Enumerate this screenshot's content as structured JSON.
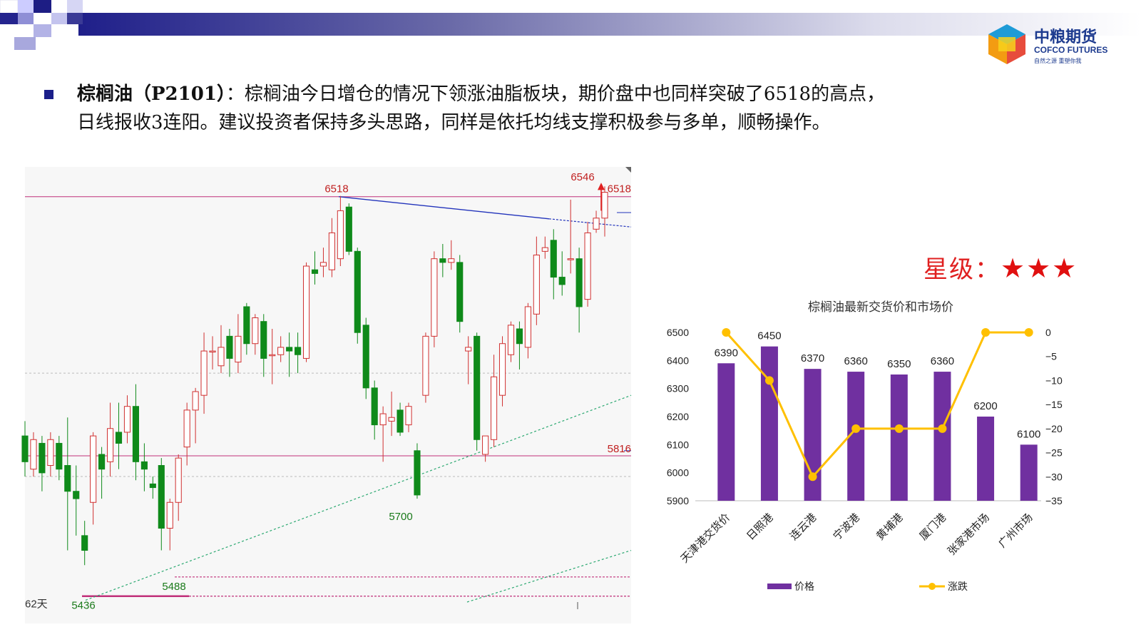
{
  "logo": {
    "name_cn": "中粮期货",
    "name_en": "COFCO FUTURES",
    "tagline": "自然之源 重塑你我"
  },
  "commentary": {
    "product_label": "棕榈油（P2101）",
    "body_line1": "：棕榈油今日增仓的情况下领涨油脂板块，期价盘中也同样突破了6518的高点，",
    "body_line2": "日线报收3连阳。建议投资者保持多头思路，同样是依托均线支撑积极参与多单，顺畅操作。"
  },
  "rating": {
    "label": "星级：",
    "stars": "★★★"
  },
  "chart_data": [
    {
      "type": "candlestick",
      "title": "",
      "price_range": [
        5420,
        6560
      ],
      "annotations": [
        {
          "text": "6518",
          "value": 6518
        },
        {
          "text": "6546",
          "value": 6546
        },
        {
          "text": "6518",
          "value": 6518
        },
        {
          "text": "5816",
          "value": 5816
        },
        {
          "text": "5700",
          "value": 5700
        },
        {
          "text": "5488",
          "value": 5488
        },
        {
          "text": "5436",
          "value": 5436
        },
        {
          "text": "62天",
          "value": null
        }
      ],
      "horizontal_levels": [
        6518,
        5816,
        5488,
        5436
      ],
      "candles": [
        {
          "o": 5870,
          "c": 5800,
          "h": 5910,
          "l": 5760
        },
        {
          "o": 5780,
          "c": 5860,
          "h": 5880,
          "l": 5760
        },
        {
          "o": 5850,
          "c": 5770,
          "h": 5870,
          "l": 5720
        },
        {
          "o": 5790,
          "c": 5860,
          "h": 5880,
          "l": 5760
        },
        {
          "o": 5850,
          "c": 5780,
          "h": 5870,
          "l": 5750
        },
        {
          "o": 5790,
          "c": 5720,
          "h": 5920,
          "l": 5560
        },
        {
          "o": 5720,
          "c": 5700,
          "h": 5790,
          "l": 5600
        },
        {
          "o": 5600,
          "c": 5560,
          "h": 5640,
          "l": 5520
        },
        {
          "o": 5690,
          "c": 5870,
          "h": 5880,
          "l": 5630
        },
        {
          "o": 5820,
          "c": 5780,
          "h": 5840,
          "l": 5700
        },
        {
          "o": 5800,
          "c": 5890,
          "h": 5960,
          "l": 5760
        },
        {
          "o": 5880,
          "c": 5850,
          "h": 5960,
          "l": 5780
        },
        {
          "o": 5880,
          "c": 5950,
          "h": 5980,
          "l": 5850
        },
        {
          "o": 5950,
          "c": 5800,
          "h": 6010,
          "l": 5750
        },
        {
          "o": 5800,
          "c": 5780,
          "h": 5850,
          "l": 5720
        },
        {
          "o": 5740,
          "c": 5730,
          "h": 5760,
          "l": 5700
        },
        {
          "o": 5790,
          "c": 5620,
          "h": 5810,
          "l": 5560
        },
        {
          "o": 5620,
          "c": 5690,
          "h": 5700,
          "l": 5560
        },
        {
          "o": 5690,
          "c": 5810,
          "h": 5820,
          "l": 5640
        },
        {
          "o": 5840,
          "c": 5940,
          "h": 5960,
          "l": 5790
        },
        {
          "o": 5940,
          "c": 5990,
          "h": 6000,
          "l": 5850
        },
        {
          "o": 5980,
          "c": 6100,
          "h": 6150,
          "l": 5930
        },
        {
          "o": 6100,
          "c": 6100,
          "h": 6140,
          "l": 6050
        },
        {
          "o": 6060,
          "c": 6110,
          "h": 6170,
          "l": 6040
        },
        {
          "o": 6140,
          "c": 6080,
          "h": 6160,
          "l": 6030
        },
        {
          "o": 6070,
          "c": 6140,
          "h": 6200,
          "l": 6040
        },
        {
          "o": 6220,
          "c": 6120,
          "h": 6230,
          "l": 6090
        },
        {
          "o": 6120,
          "c": 6190,
          "h": 6200,
          "l": 6090
        },
        {
          "o": 6180,
          "c": 6080,
          "h": 6200,
          "l": 6030
        },
        {
          "o": 6090,
          "c": 6090,
          "h": 6160,
          "l": 6010
        },
        {
          "o": 6090,
          "c": 6110,
          "h": 6140,
          "l": 6070
        },
        {
          "o": 6110,
          "c": 6100,
          "h": 6150,
          "l": 6030
        },
        {
          "o": 6110,
          "c": 6090,
          "h": 6150,
          "l": 6040
        },
        {
          "o": 6080,
          "c": 6330,
          "h": 6340,
          "l": 6070
        },
        {
          "o": 6320,
          "c": 6310,
          "h": 6370,
          "l": 6280
        },
        {
          "o": 6330,
          "c": 6340,
          "h": 6380,
          "l": 6300
        },
        {
          "o": 6320,
          "c": 6420,
          "h": 6460,
          "l": 6300
        },
        {
          "o": 6350,
          "c": 6480,
          "h": 6520,
          "l": 6330
        },
        {
          "o": 6490,
          "c": 6370,
          "h": 6500,
          "l": 6360
        },
        {
          "o": 6370,
          "c": 6150,
          "h": 6380,
          "l": 6120
        },
        {
          "o": 6170,
          "c": 6000,
          "h": 6190,
          "l": 5970
        },
        {
          "o": 6000,
          "c": 5900,
          "h": 6020,
          "l": 5860
        },
        {
          "o": 5900,
          "c": 5930,
          "h": 5950,
          "l": 5800
        },
        {
          "o": 5910,
          "c": 5920,
          "h": 5990,
          "l": 5870
        },
        {
          "o": 5940,
          "c": 5880,
          "h": 5960,
          "l": 5870
        },
        {
          "o": 5900,
          "c": 5950,
          "h": 5960,
          "l": 5880
        },
        {
          "o": 5830,
          "c": 5710,
          "h": 5850,
          "l": 5700
        },
        {
          "o": 5980,
          "c": 6140,
          "h": 6150,
          "l": 5960
        },
        {
          "o": 6140,
          "c": 6350,
          "h": 6370,
          "l": 6110
        },
        {
          "o": 6350,
          "c": 6340,
          "h": 6390,
          "l": 6300
        },
        {
          "o": 6340,
          "c": 6350,
          "h": 6400,
          "l": 6320
        },
        {
          "o": 6340,
          "c": 6180,
          "h": 6360,
          "l": 6150
        },
        {
          "o": 6100,
          "c": 6110,
          "h": 6140,
          "l": 6010
        },
        {
          "o": 6140,
          "c": 5860,
          "h": 6150,
          "l": 5830
        },
        {
          "o": 5820,
          "c": 5870,
          "h": 5870,
          "l": 5800
        },
        {
          "o": 5860,
          "c": 6030,
          "h": 6090,
          "l": 5840
        },
        {
          "o": 5980,
          "c": 6120,
          "h": 6140,
          "l": 5950
        },
        {
          "o": 6090,
          "c": 6170,
          "h": 6180,
          "l": 6070
        },
        {
          "o": 6160,
          "c": 6120,
          "h": 6180,
          "l": 6050
        },
        {
          "o": 6110,
          "c": 6220,
          "h": 6230,
          "l": 6080
        },
        {
          "o": 6200,
          "c": 6360,
          "h": 6410,
          "l": 6170
        },
        {
          "o": 6370,
          "c": 6380,
          "h": 6410,
          "l": 6350
        },
        {
          "o": 6400,
          "c": 6300,
          "h": 6430,
          "l": 6240
        },
        {
          "o": 6300,
          "c": 6280,
          "h": 6370,
          "l": 6250
        },
        {
          "o": 6350,
          "c": 6350,
          "h": 6510,
          "l": 6310
        },
        {
          "o": 6350,
          "c": 6220,
          "h": 6380,
          "l": 6150
        },
        {
          "o": 6240,
          "c": 6420,
          "h": 6450,
          "l": 6220
        },
        {
          "o": 6430,
          "c": 6460,
          "h": 6480,
          "l": 6420
        },
        {
          "o": 6460,
          "c": 6530,
          "h": 6546,
          "l": 6410
        }
      ]
    },
    {
      "type": "bar+line",
      "title": "棕榈油最新交货价和市场价",
      "categories": [
        "天津港交货价",
        "日照港",
        "连云港",
        "宁波港",
        "黄埔港",
        "厦门港",
        "张家港市场",
        "广州市场"
      ],
      "y_left": {
        "range": [
          5900,
          6500
        ],
        "ticks": [
          5900,
          6000,
          6100,
          6200,
          6300,
          6400,
          6500
        ]
      },
      "y_right": {
        "range": [
          -35,
          0
        ],
        "ticks": [
          "0",
          "-5",
          "-10",
          "-15",
          "-20",
          "-25",
          "-30",
          "-35"
        ]
      },
      "series": [
        {
          "name": "价格",
          "type": "bar",
          "color": "#7030a0",
          "values": [
            6390,
            6450,
            6370,
            6360,
            6350,
            6360,
            6200,
            6100
          ]
        },
        {
          "name": "涨跌",
          "type": "line",
          "color": "#ffc000",
          "values": [
            0,
            -10,
            -30,
            -20,
            -20,
            -20,
            0,
            0
          ]
        }
      ],
      "legend_position": "bottom"
    }
  ]
}
